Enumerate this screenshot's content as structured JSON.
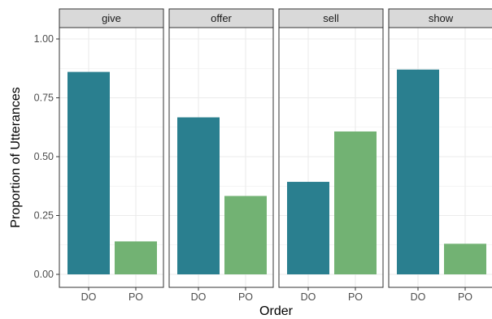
{
  "chart_data": {
    "type": "bar",
    "facets": [
      "give",
      "offer",
      "sell",
      "show"
    ],
    "categories": [
      "DO",
      "PO"
    ],
    "series": [
      {
        "facet": "give",
        "values": [
          0.86,
          0.14
        ]
      },
      {
        "facet": "offer",
        "values": [
          0.667,
          0.333
        ]
      },
      {
        "facet": "sell",
        "values": [
          0.393,
          0.607
        ]
      },
      {
        "facet": "show",
        "values": [
          0.87,
          0.13
        ]
      }
    ],
    "xlabel": "Order",
    "ylabel": "Proportion of Utterances",
    "ylim": [
      0,
      1
    ],
    "yticks": [
      "0.00",
      "0.25",
      "0.50",
      "0.75",
      "1.00"
    ],
    "grid": true,
    "legend": "none",
    "colors": {
      "DO": "#2a7f8f",
      "PO": "#72b273",
      "strip_fill": "#d9d9d9",
      "grid": "#ebebeb",
      "panel_border": "#333333"
    }
  }
}
